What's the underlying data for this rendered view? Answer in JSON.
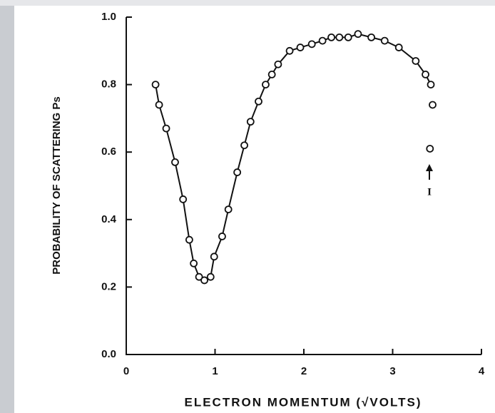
{
  "chart_data": {
    "type": "line",
    "x_label": "ELECTRON MOMENTUM (√VOLTS)",
    "y_label": "PROBABILITY OF SCATTERING Ps",
    "annotation": "I",
    "xlim": [
      0,
      4
    ],
    "xticks": [
      0,
      1,
      2,
      3,
      4
    ],
    "ylim": [
      0,
      1
    ],
    "yticks": [
      {
        "value": 0,
        "label": "0.0"
      },
      0.2,
      0.4,
      0.6,
      0.8,
      {
        "value": 1,
        "label": "1.0"
      }
    ],
    "series": [
      {
        "color": "#111111",
        "connected": true,
        "x": [
          0.33,
          0.37,
          0.45,
          0.55,
          0.64,
          0.71,
          0.76,
          0.82,
          0.88,
          0.95,
          0.99,
          1.08,
          1.15,
          1.25,
          1.33,
          1.4,
          1.49,
          1.57,
          1.64,
          1.71,
          1.84,
          1.96,
          2.09,
          2.21,
          2.31,
          2.4,
          2.5,
          2.61,
          2.76,
          2.91,
          3.07,
          3.26,
          3.37,
          3.43
        ],
        "values": [
          0.8,
          0.74,
          0.67,
          0.57,
          0.46,
          0.34,
          0.27,
          0.23,
          0.22,
          0.23,
          0.29,
          0.35,
          0.43,
          0.54,
          0.62,
          0.69,
          0.75,
          0.8,
          0.83,
          0.86,
          0.9,
          0.91,
          0.92,
          0.93,
          0.94,
          0.94,
          0.94,
          0.95,
          0.94,
          0.93,
          0.91,
          0.87,
          0.83,
          0.8
        ]
      },
      {
        "color": "#111111",
        "connected": false,
        "x": [
          3.45,
          3.42
        ],
        "values": [
          0.74,
          0.61
        ]
      }
    ]
  }
}
